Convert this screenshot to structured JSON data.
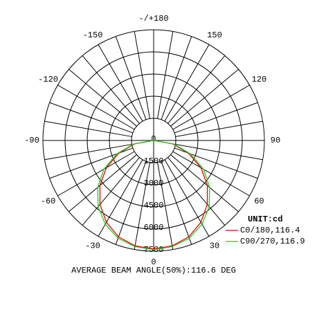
{
  "chart_data": {
    "type": "polar",
    "theta": [
      -90,
      -80,
      -70,
      -60,
      -50,
      -40,
      -30,
      -20,
      -10,
      0,
      10,
      20,
      30,
      40,
      50,
      60,
      70,
      80,
      90
    ],
    "series": [
      {
        "name": "C0/180,116.4",
        "color": "#e00000",
        "values": [
          0,
          1300,
          2500,
          3700,
          4750,
          5650,
          6400,
          6950,
          7250,
          7350,
          7250,
          6950,
          6400,
          5650,
          4750,
          3700,
          2500,
          1300,
          0
        ]
      },
      {
        "name": "C90/270,116.9",
        "color": "#22cc22",
        "values": [
          0,
          1400,
          2650,
          3900,
          4950,
          5850,
          6550,
          7050,
          7300,
          7400,
          7300,
          7050,
          6550,
          5850,
          4950,
          3900,
          2650,
          1400,
          0
        ]
      }
    ],
    "rlim": [
      0,
      7500
    ],
    "rticks": [
      0,
      1500,
      3000,
      4500,
      6000,
      7500
    ],
    "angle_ticks": [
      {
        "value": 180,
        "label": "-/+180"
      },
      -150,
      150,
      -120,
      120,
      -90,
      90,
      -60,
      60,
      -30,
      30,
      0
    ],
    "unit_label": "UNIT:cd",
    "footer": "AVERAGE BEAM ANGLE(50%):116.6 DEG"
  }
}
